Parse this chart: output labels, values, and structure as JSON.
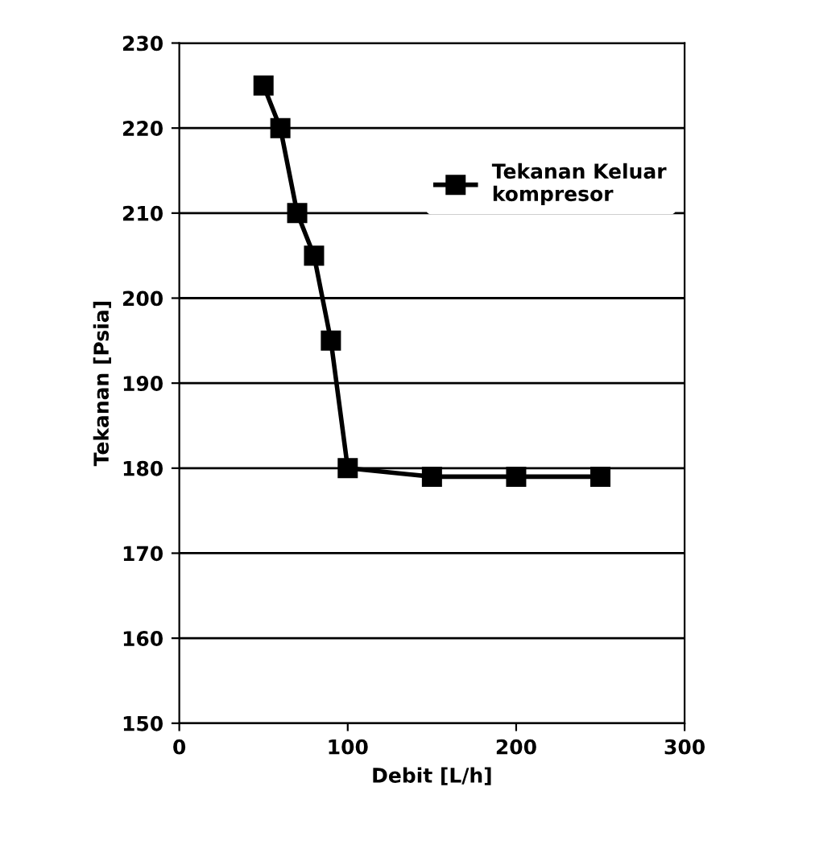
{
  "chart_data": {
    "type": "line",
    "xlabel": "Debit [L/h]",
    "ylabel": "Tekanan [Psia]",
    "x": [
      50,
      60,
      70,
      80,
      90,
      100,
      150,
      200,
      250
    ],
    "series": [
      {
        "name": "Tekanan Keluar\nkompresor",
        "color": "#000000",
        "values": [
          225,
          220,
          210,
          205,
          195,
          180,
          179,
          179,
          179
        ]
      }
    ],
    "xlim": [
      0,
      300
    ],
    "xticks": [
      0,
      100,
      200,
      300
    ],
    "ylim": [
      150,
      230
    ],
    "yticks": [
      150,
      160,
      170,
      180,
      190,
      200,
      210,
      220,
      230
    ],
    "grid": "y",
    "legend": "top right",
    "marker": "square",
    "line_style": "solid"
  }
}
